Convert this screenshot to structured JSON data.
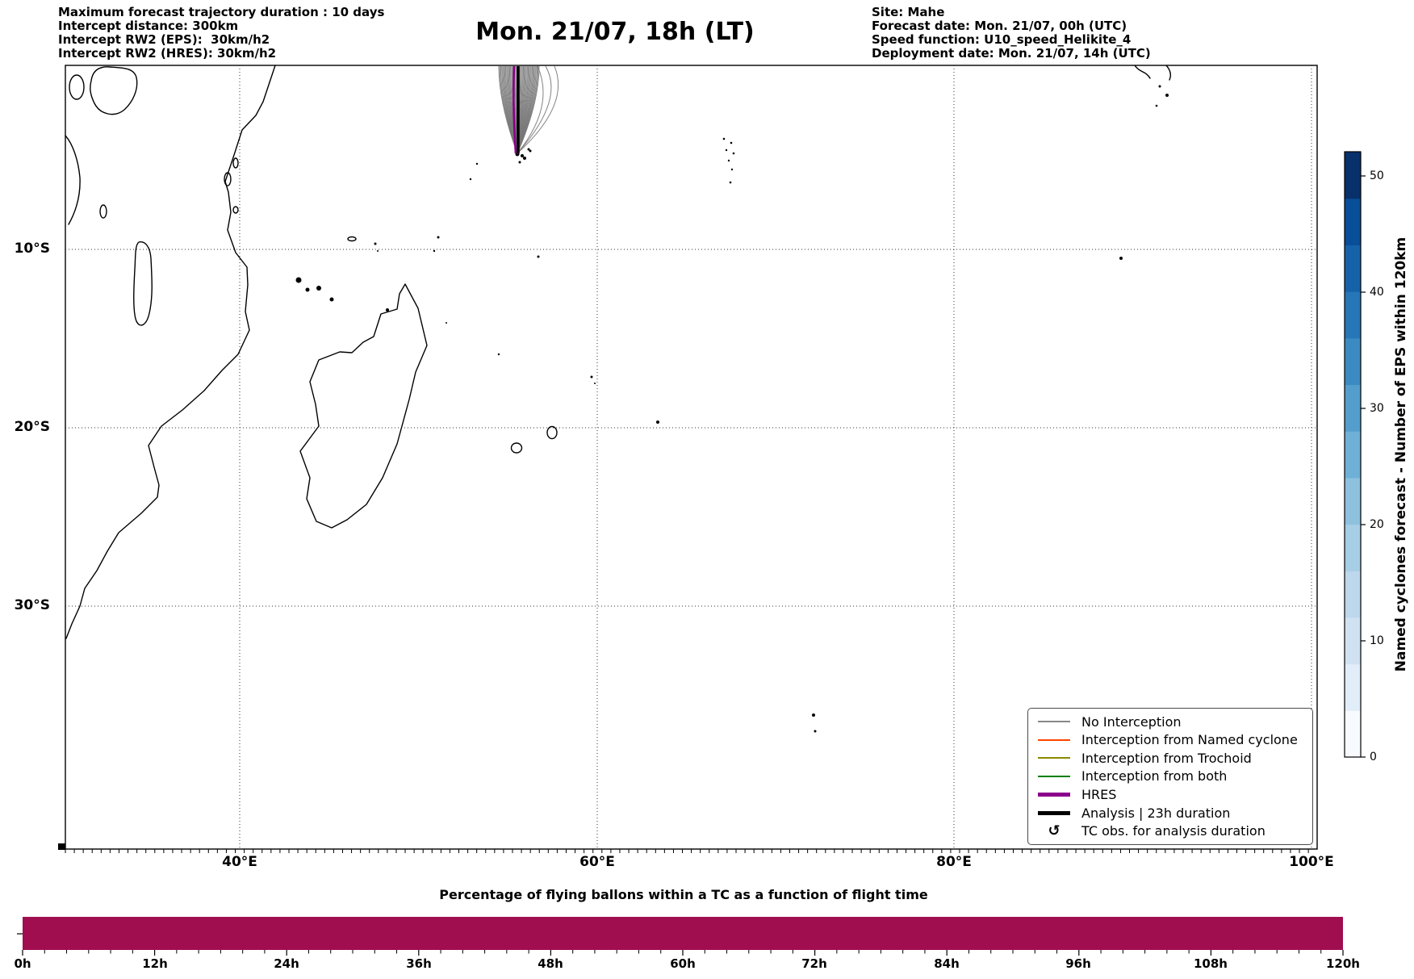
{
  "figure": {
    "header_left": [
      "Maximum forecast trajectory duration : 10 days",
      "Intercept distance: 300km",
      "Intercept RW2 (EPS):  30km/h2",
      "Intercept RW2 (HRES): 30km/h2"
    ],
    "title": "Mon. 21/07, 18h (LT)",
    "header_right": [
      "Site: Mahe",
      "Forecast date: Mon. 21/07, 00h (UTC)",
      "Speed function: U10_speed_Helikite_4",
      "Deployment date: Mon. 21/07, 14h (UTC)"
    ]
  },
  "map": {
    "x_tick_labels": [
      "40°E",
      "60°E",
      "80°E",
      "100°E"
    ],
    "y_tick_labels": [
      "10°S",
      "20°S",
      "30°S"
    ],
    "fan": {
      "color": "#777777",
      "hres_color": "#8b008b",
      "analysis_color": "#000000",
      "member_count": 45
    },
    "legend": {
      "items": [
        {
          "label": "No Interception",
          "color": "#888888",
          "thick": false
        },
        {
          "label": "Interception from Named cyclone",
          "color": "#ff4500",
          "thick": false
        },
        {
          "label": "Interception from Trochoid",
          "color": "#8a8a00",
          "thick": false
        },
        {
          "label": "Interception from both",
          "color": "#007f00",
          "thick": false
        },
        {
          "label": "HRES",
          "color": "#8b008b",
          "thick": true
        },
        {
          "label": "Analysis | 23h duration",
          "color": "#000000",
          "thick": true
        },
        {
          "label": "TC obs. for analysis duration",
          "color": "#000000",
          "symbol": "↺"
        }
      ]
    }
  },
  "colorbar": {
    "label": "Named cyclones forecast - Number of EPS within 120km",
    "tick_labels": [
      "0",
      "10",
      "20",
      "30",
      "40",
      "50"
    ],
    "min": 0,
    "max": 52,
    "colors": [
      "#f7fbff",
      "#e1edf8",
      "#d0e1f2",
      "#bdd7ec",
      "#a6cee4",
      "#8dc1dd",
      "#6fb0d7",
      "#539ecc",
      "#3b8bc2",
      "#2676b8",
      "#1562a9",
      "#084e98",
      "#08306b"
    ]
  },
  "bottom_chart": {
    "title": "Percentage of flying ballons within a TC as a function of flight time",
    "x_tick_labels": [
      "0h",
      "12h",
      "24h",
      "36h",
      "48h",
      "60h",
      "72h",
      "84h",
      "96h",
      "108h",
      "120h"
    ],
    "bar_color": "#a00e50"
  },
  "chart_data": [
    {
      "type": "line",
      "subtype": "trajectory-map",
      "title": "Mon. 21/07, 18h (LT)",
      "x_ticks": [
        "40°E",
        "60°E",
        "80°E",
        "100°E"
      ],
      "y_ticks": [
        "10°S",
        "20°S",
        "30°S"
      ],
      "deployment_site": {
        "name": "Mahe",
        "lon_deg_e": 55.5,
        "lat_deg_s": 4.7
      },
      "trajectories": {
        "count_approx": 45,
        "visible_classes": [
          "No Interception",
          "HRES",
          "Analysis | 23h duration"
        ],
        "description": "Fan of ensemble balloon trajectories extending north from Mahe to the top of the map (~0°)"
      },
      "colorbar": {
        "label": "Named cyclones forecast - Number of EPS within 120km",
        "min": 0,
        "max": 52,
        "ticks": [
          0,
          10,
          20,
          30,
          40,
          50
        ]
      },
      "grid": true
    },
    {
      "type": "bar",
      "title": "Percentage of flying ballons within a TC as a function of flight time",
      "x_ticks_hours": [
        0,
        12,
        24,
        36,
        48,
        60,
        72,
        84,
        96,
        108,
        120
      ],
      "x_tick_labels": [
        "0h",
        "12h",
        "24h",
        "36h",
        "48h",
        "60h",
        "72h",
        "84h",
        "96h",
        "108h",
        "120h"
      ],
      "series": [
        {
          "name": "percentage of flying balloons within a TC",
          "x_range_hours": [
            0,
            120
          ],
          "value_percent_constant": 100
        }
      ],
      "bar_color": "#a00e50"
    }
  ]
}
